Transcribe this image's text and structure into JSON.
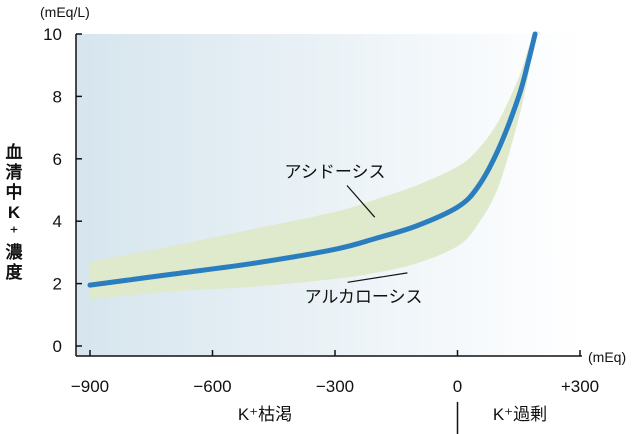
{
  "chart_data": {
    "type": "line",
    "ylabel": "血清中K⁺濃度",
    "y_unit": "(mEq/L)",
    "x_unit": "(mEq)",
    "ylim": [
      0,
      10
    ],
    "xlim": [
      -900,
      300
    ],
    "y_ticks": [
      0,
      2,
      4,
      6,
      8,
      10
    ],
    "x_ticks": [
      -900,
      -600,
      -300,
      0,
      300
    ],
    "x_tick_labels": [
      "−900",
      "−600",
      "−300",
      "0",
      "+300"
    ],
    "region_labels": {
      "deficit": "K⁺枯渇",
      "excess": "K⁺過剰"
    },
    "series": [
      {
        "color": "#2a7ec0",
        "x": [
          -900,
          -700,
          -500,
          -300,
          -200,
          -100,
          0,
          50,
          100,
          150,
          175,
          190
        ],
        "y": [
          1.95,
          2.3,
          2.65,
          3.1,
          3.45,
          3.85,
          4.45,
          5.1,
          6.3,
          8.0,
          9.2,
          10.0
        ]
      }
    ],
    "band": {
      "color": "#dfe9cb",
      "x": [
        -900,
        -700,
        -500,
        -300,
        -200,
        -100,
        0,
        50,
        100,
        150,
        175,
        190,
        205
      ],
      "upper": [
        2.7,
        3.2,
        3.75,
        4.3,
        4.7,
        5.15,
        5.75,
        6.3,
        7.2,
        8.6,
        9.6,
        10.0,
        10.0
      ],
      "lower": [
        1.5,
        1.75,
        1.9,
        2.15,
        2.35,
        2.65,
        3.2,
        3.9,
        5.1,
        7.3,
        8.8,
        10.0,
        10.0
      ]
    },
    "annotations": [
      {
        "text": "アシドーシス",
        "x": -300,
        "y": 5.4,
        "pointer_x": -330,
        "pointer_y": 4.0
      },
      {
        "text": "アルカローシス",
        "x": -230,
        "y": 1.4,
        "pointer_x": -250,
        "pointer_y": 2.6
      }
    ],
    "background_gradient": [
      "#d6e5ee",
      "#ffffff"
    ],
    "grid": false
  }
}
